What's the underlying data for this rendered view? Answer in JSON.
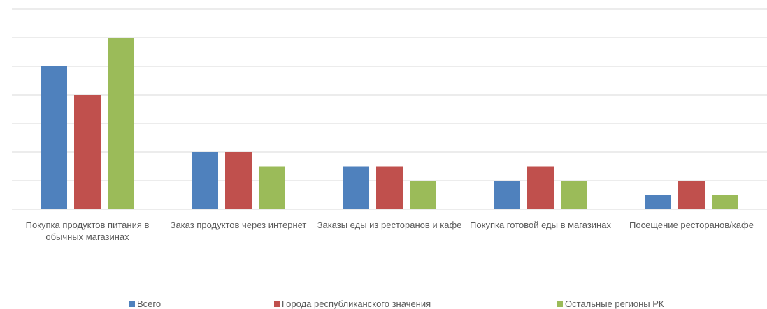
{
  "chart_data": {
    "type": "bar",
    "categories": [
      "Покупка продуктов питания в обычных магазинах",
      "Заказ продуктов через интернет",
      "Заказы еды из ресторанов и кафе",
      "Покупка готовой еды в магазинах",
      "Посещение ресторанов/кафе"
    ],
    "series": [
      {
        "name": "Всего",
        "color": "#4f81bd",
        "values": [
          5,
          2,
          1.5,
          1,
          0.5
        ]
      },
      {
        "name": "Города республиканского значения",
        "color": "#c0504d",
        "values": [
          4,
          2,
          1.5,
          1.5,
          1
        ]
      },
      {
        "name": "Остальные регионы РК",
        "color": "#9bbb59",
        "values": [
          6,
          1.5,
          1,
          1,
          0.5
        ]
      }
    ],
    "ylim": [
      0,
      7
    ],
    "yticks": [
      0,
      1,
      2,
      3,
      4,
      5,
      6,
      7
    ],
    "grid": true,
    "legend": "bottom"
  }
}
